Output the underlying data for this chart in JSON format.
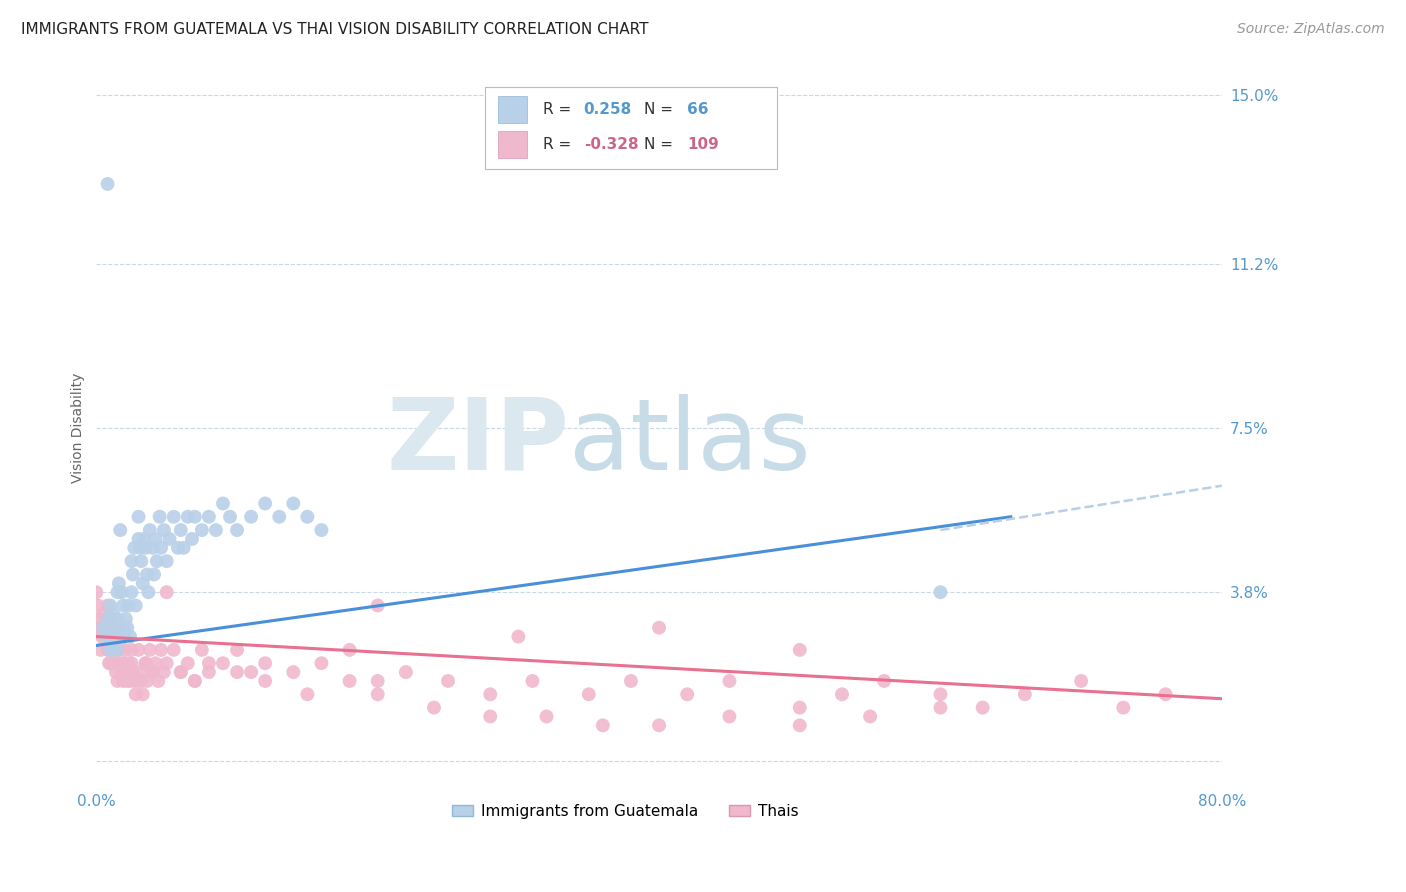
{
  "title": "IMMIGRANTS FROM GUATEMALA VS THAI VISION DISABILITY CORRELATION CHART",
  "source": "Source: ZipAtlas.com",
  "ylabel": "Vision Disability",
  "xlim": [
    0.0,
    0.8
  ],
  "ylim": [
    -0.005,
    0.155
  ],
  "yticks": [
    0.0,
    0.038,
    0.075,
    0.112,
    0.15
  ],
  "ytick_labels": [
    "",
    "3.8%",
    "7.5%",
    "11.2%",
    "15.0%"
  ],
  "xtick_labels": [
    "0.0%",
    "80.0%"
  ],
  "xticks": [
    0.0,
    0.8
  ],
  "scatter_blue": {
    "color": "#b8d0e8",
    "x": [
      0.005,
      0.007,
      0.008,
      0.01,
      0.01,
      0.012,
      0.013,
      0.014,
      0.015,
      0.015,
      0.016,
      0.017,
      0.018,
      0.019,
      0.02,
      0.02,
      0.021,
      0.022,
      0.023,
      0.024,
      0.025,
      0.025,
      0.026,
      0.027,
      0.028,
      0.03,
      0.03,
      0.031,
      0.032,
      0.033,
      0.034,
      0.035,
      0.036,
      0.037,
      0.038,
      0.04,
      0.041,
      0.042,
      0.043,
      0.045,
      0.046,
      0.048,
      0.05,
      0.052,
      0.055,
      0.058,
      0.06,
      0.062,
      0.065,
      0.068,
      0.07,
      0.075,
      0.08,
      0.085,
      0.09,
      0.095,
      0.1,
      0.11,
      0.12,
      0.13,
      0.14,
      0.15,
      0.16,
      0.6,
      0.008,
      0.015
    ],
    "y": [
      0.03,
      0.028,
      0.032,
      0.035,
      0.025,
      0.033,
      0.03,
      0.028,
      0.032,
      0.025,
      0.04,
      0.052,
      0.038,
      0.035,
      0.03,
      0.028,
      0.032,
      0.03,
      0.035,
      0.028,
      0.045,
      0.038,
      0.042,
      0.048,
      0.035,
      0.055,
      0.05,
      0.048,
      0.045,
      0.04,
      0.05,
      0.048,
      0.042,
      0.038,
      0.052,
      0.048,
      0.042,
      0.05,
      0.045,
      0.055,
      0.048,
      0.052,
      0.045,
      0.05,
      0.055,
      0.048,
      0.052,
      0.048,
      0.055,
      0.05,
      0.055,
      0.052,
      0.055,
      0.052,
      0.058,
      0.055,
      0.052,
      0.055,
      0.058,
      0.055,
      0.058,
      0.055,
      0.052,
      0.038,
      0.13,
      0.038
    ]
  },
  "scatter_pink": {
    "color": "#f0b8cc",
    "x": [
      0.0,
      0.001,
      0.002,
      0.003,
      0.004,
      0.005,
      0.006,
      0.007,
      0.008,
      0.008,
      0.009,
      0.01,
      0.01,
      0.011,
      0.012,
      0.013,
      0.014,
      0.015,
      0.015,
      0.016,
      0.017,
      0.018,
      0.019,
      0.02,
      0.02,
      0.021,
      0.022,
      0.023,
      0.024,
      0.025,
      0.026,
      0.027,
      0.028,
      0.03,
      0.031,
      0.032,
      0.033,
      0.035,
      0.036,
      0.038,
      0.04,
      0.042,
      0.044,
      0.046,
      0.048,
      0.05,
      0.055,
      0.06,
      0.065,
      0.07,
      0.075,
      0.08,
      0.09,
      0.1,
      0.11,
      0.12,
      0.14,
      0.16,
      0.18,
      0.2,
      0.22,
      0.25,
      0.28,
      0.31,
      0.35,
      0.38,
      0.42,
      0.45,
      0.5,
      0.53,
      0.56,
      0.6,
      0.63,
      0.66,
      0.7,
      0.73,
      0.76,
      0.001,
      0.003,
      0.005,
      0.01,
      0.015,
      0.02,
      0.025,
      0.03,
      0.035,
      0.04,
      0.05,
      0.06,
      0.07,
      0.08,
      0.1,
      0.12,
      0.15,
      0.18,
      0.2,
      0.24,
      0.28,
      0.32,
      0.36,
      0.4,
      0.45,
      0.5,
      0.55,
      0.6,
      0.2,
      0.3,
      0.4,
      0.5
    ],
    "y": [
      0.038,
      0.035,
      0.032,
      0.03,
      0.028,
      0.033,
      0.03,
      0.028,
      0.025,
      0.035,
      0.022,
      0.032,
      0.025,
      0.028,
      0.025,
      0.022,
      0.02,
      0.03,
      0.018,
      0.025,
      0.022,
      0.02,
      0.018,
      0.025,
      0.022,
      0.02,
      0.018,
      0.022,
      0.018,
      0.025,
      0.02,
      0.018,
      0.015,
      0.025,
      0.02,
      0.018,
      0.015,
      0.022,
      0.018,
      0.025,
      0.02,
      0.022,
      0.018,
      0.025,
      0.02,
      0.038,
      0.025,
      0.02,
      0.022,
      0.018,
      0.025,
      0.02,
      0.022,
      0.025,
      0.02,
      0.022,
      0.02,
      0.022,
      0.025,
      0.018,
      0.02,
      0.018,
      0.015,
      0.018,
      0.015,
      0.018,
      0.015,
      0.018,
      0.012,
      0.015,
      0.018,
      0.015,
      0.012,
      0.015,
      0.018,
      0.012,
      0.015,
      0.03,
      0.025,
      0.028,
      0.022,
      0.025,
      0.02,
      0.022,
      0.018,
      0.022,
      0.02,
      0.022,
      0.02,
      0.018,
      0.022,
      0.02,
      0.018,
      0.015,
      0.018,
      0.015,
      0.012,
      0.01,
      0.01,
      0.008,
      0.008,
      0.01,
      0.008,
      0.01,
      0.012,
      0.035,
      0.028,
      0.03,
      0.025
    ]
  },
  "line_blue": {
    "color": "#4a90d9",
    "x_start": 0.0,
    "x_end": 0.65,
    "y_start": 0.026,
    "y_end": 0.055
  },
  "line_blue_dashed": {
    "color": "#b8cfe8",
    "x_start": 0.6,
    "x_end": 0.8,
    "y_start": 0.052,
    "y_end": 0.062
  },
  "line_pink": {
    "color": "#e87090",
    "x_start": 0.0,
    "x_end": 0.8,
    "y_start": 0.028,
    "y_end": 0.014
  },
  "watermark_part1": "ZIP",
  "watermark_part2": "atlas",
  "watermark_color1": "#dce8f0",
  "watermark_color2": "#c8dce8",
  "background_color": "#ffffff",
  "grid_color": "#c8d8e8",
  "title_fontsize": 11,
  "axis_label_fontsize": 10,
  "tick_fontsize": 11,
  "legend_fontsize": 11,
  "source_fontsize": 10
}
